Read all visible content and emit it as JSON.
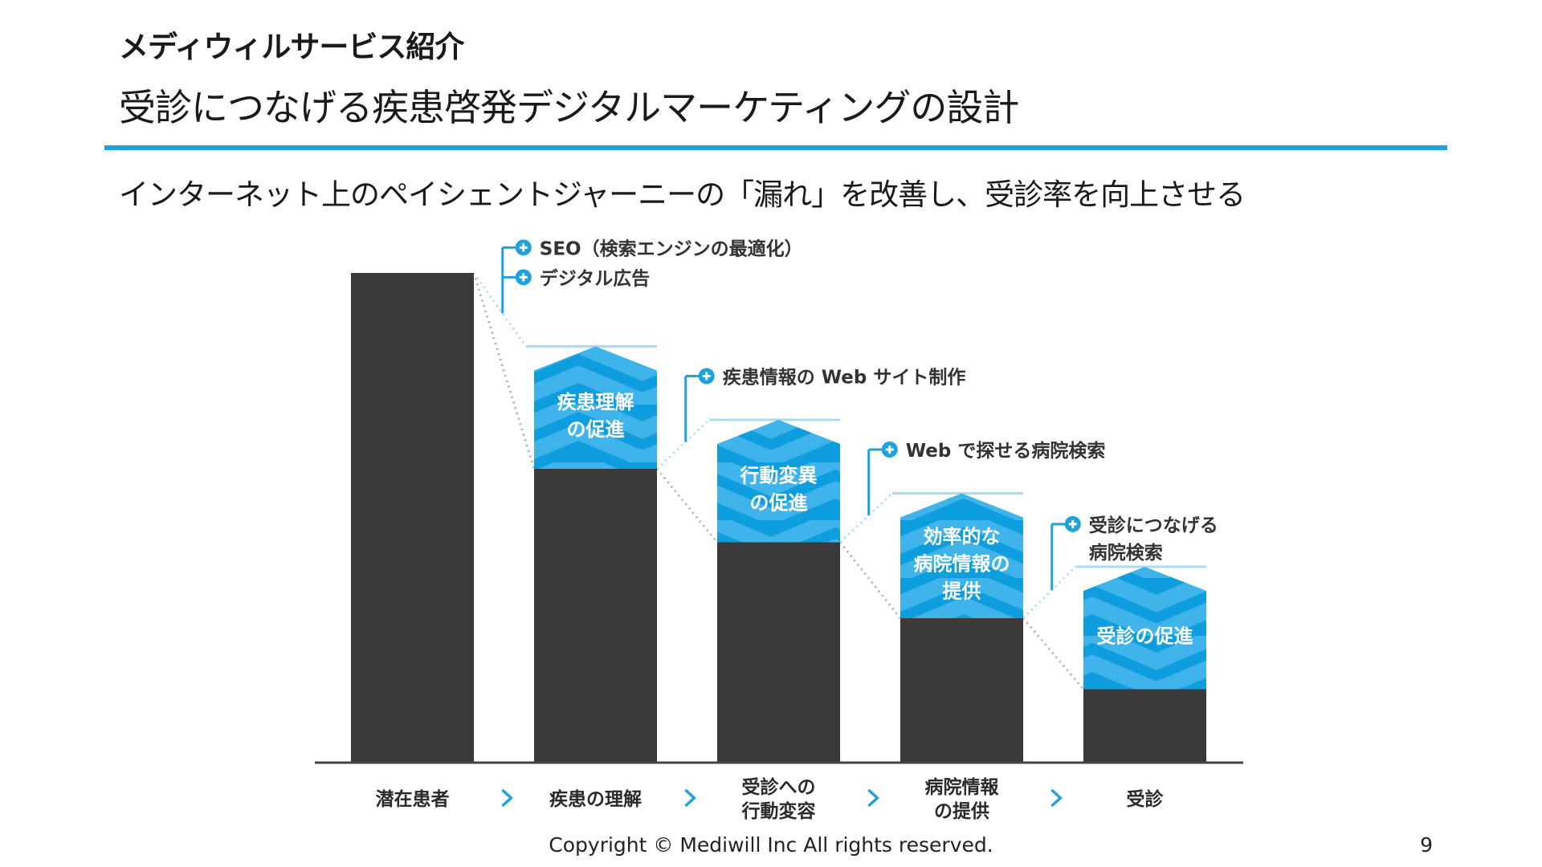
{
  "header": {
    "section_title": "メディウィルサービス紹介",
    "main_title": "受診につなげる疾患啓発デジタルマーケティングの設計",
    "subtitle": "インターネット上のペイシェントジャーニーの「漏れ」を改善し、受診率を向上させる"
  },
  "colors": {
    "bar_dark": "#3a3a3a",
    "chevron_blue_dark": "#0e9ee0",
    "chevron_blue_light": "#3fb4ea",
    "accent_blue": "#1ea1dc",
    "connector_light_blue": "#a9dcf2",
    "connector_gray": "#b0b0b0"
  },
  "chart_data": {
    "type": "bar",
    "categories": [
      [
        "潜在患者"
      ],
      [
        "疾患の理解"
      ],
      [
        "受診への",
        "行動変容"
      ],
      [
        "病院情報",
        "の提供"
      ],
      [
        "受診"
      ]
    ],
    "values": [
      100,
      60,
      45,
      29.5,
      15
    ],
    "potential_values": [
      null,
      85,
      70,
      55,
      40
    ],
    "boosts": [
      null,
      [
        "疾患理解",
        "の促進"
      ],
      [
        "行動変異",
        "の促進"
      ],
      [
        "効率的な",
        "病院情報の",
        "提供"
      ],
      [
        "受診の促進"
      ]
    ],
    "callouts": [
      {
        "stage": 1,
        "items": [
          [
            "SEO（検索エンジンの最適化）"
          ],
          [
            "デジタル広告"
          ]
        ]
      },
      {
        "stage": 2,
        "items": [
          [
            "疾患情報の Web サイト制作"
          ]
        ]
      },
      {
        "stage": 3,
        "items": [
          [
            "Web で探せる病院検索"
          ]
        ]
      },
      {
        "stage": 4,
        "items": [
          [
            "受診につなげる",
            "病院検索"
          ]
        ]
      }
    ],
    "arrow_icon": "chevron-right-icon",
    "callout_icon": "plus-circle-icon"
  },
  "footer": {
    "copyright": "Copyright © Mediwill Inc All rights reserved.",
    "page_number": "9"
  }
}
